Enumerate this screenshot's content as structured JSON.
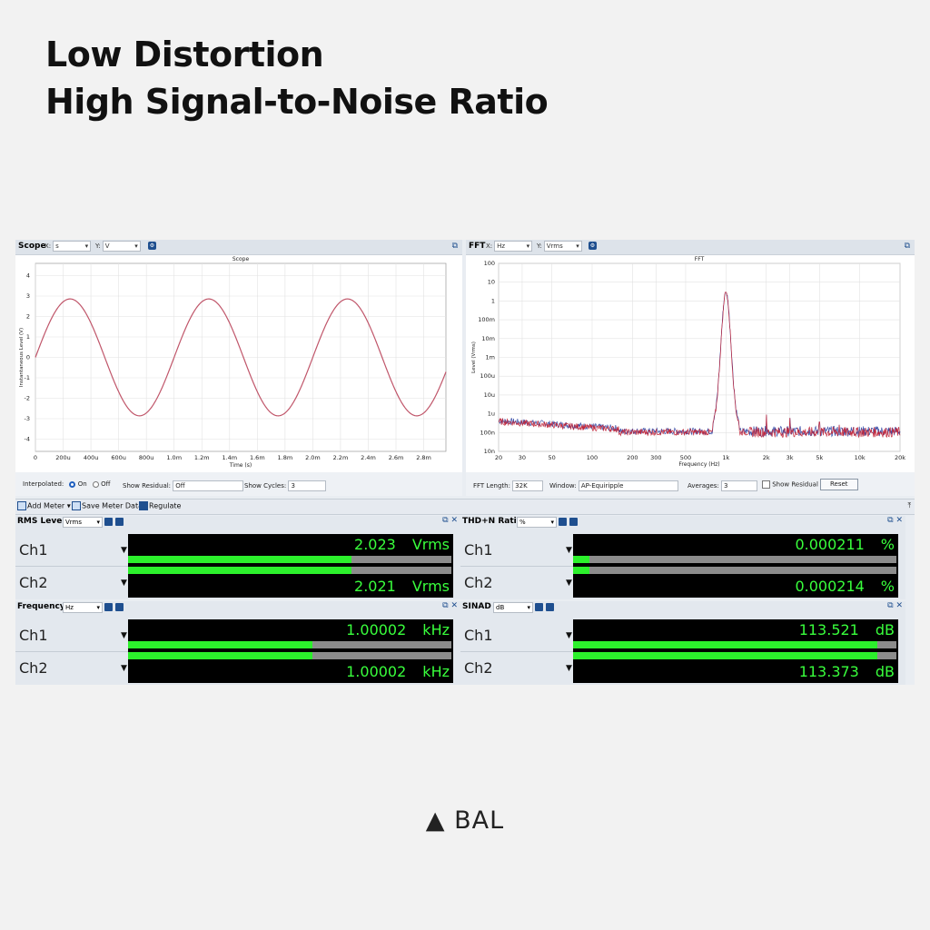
{
  "heading": {
    "line1": "Low Distortion",
    "line2": "High Signal-to-Noise Ratio"
  },
  "scope": {
    "title": "Scope",
    "x_label": "X:",
    "x_unit": "s",
    "y_label": "Y:",
    "y_unit": "V",
    "plot_title": "Scope",
    "ylabel": "Instantaneous Level (V)",
    "xlabel": "Time (s)",
    "yticks": [
      "4",
      "3",
      "2",
      "1",
      "0",
      "-1",
      "-2",
      "-3",
      "-4"
    ],
    "xticks": [
      "0",
      "200u",
      "400u",
      "600u",
      "800u",
      "1.0m",
      "1.2m",
      "1.4m",
      "1.6m",
      "1.8m",
      "2.0m",
      "2.2m",
      "2.4m",
      "2.6m",
      "2.8m"
    ],
    "controls": {
      "interpolated_label": "Interpolated:",
      "on_label": "On",
      "off_label": "Off",
      "show_residual_label": "Show Residual:",
      "show_residual_value": "Off",
      "show_cycles_label": "Show Cycles:",
      "show_cycles_value": "3"
    }
  },
  "fft": {
    "title": "FFT",
    "x_label": "X:",
    "x_unit": "Hz",
    "y_label": "Y:",
    "y_unit": "Vrms",
    "plot_title": "FFT",
    "ylabel": "Level (Vrms)",
    "xlabel": "Frequency (Hz)",
    "yticks": [
      "100",
      "10",
      "1",
      "100m",
      "10m",
      "1m",
      "100u",
      "10u",
      "1u",
      "100n",
      "10n"
    ],
    "xticks": [
      "20",
      "30",
      "50",
      "100",
      "200",
      "300",
      "500",
      "1k",
      "2k",
      "3k",
      "5k",
      "10k",
      "20k"
    ],
    "controls": {
      "fft_length_label": "FFT Length:",
      "fft_length_value": "32K",
      "window_label": "Window:",
      "window_value": "AP-Equiripple",
      "averages_label": "Averages:",
      "averages_value": "3",
      "show_residual_label": "Show Residual",
      "reset_label": "Reset"
    }
  },
  "toolbar": {
    "add_meter": "Add Meter",
    "save_meter_data": "Save Meter Data",
    "regulate": "Regulate"
  },
  "meters": {
    "rms": {
      "title": "RMS Level",
      "unit": "Vrms",
      "ch1_label": "Ch1",
      "ch2_label": "Ch2",
      "ch1_value": "2.023",
      "ch2_value": "2.021",
      "value_unit": "Vrms",
      "ch1_fill": 0.69,
      "ch2_fill": 0.69
    },
    "thdn": {
      "title": "THD+N Ratio",
      "unit": "%",
      "ch1_label": "Ch1",
      "ch2_label": "Ch2",
      "ch1_value": "0.000211",
      "ch2_value": "0.000214",
      "value_unit": "%",
      "ch1_fill": 0.05,
      "ch2_fill": 0.05
    },
    "freq": {
      "title": "Frequency",
      "unit": "Hz",
      "ch1_label": "Ch1",
      "ch2_label": "Ch2",
      "ch1_value": "1.00002",
      "ch2_value": "1.00002",
      "value_unit": "kHz",
      "ch1_fill": 0.57,
      "ch2_fill": 0.57
    },
    "sinad": {
      "title": "SINAD",
      "unit": "dB",
      "ch1_label": "Ch1",
      "ch2_label": "Ch2",
      "ch1_value": "113.521",
      "ch2_value": "113.373",
      "value_unit": "dB",
      "ch1_fill": 0.94,
      "ch2_fill": 0.94
    }
  },
  "footer": {
    "label": "BAL"
  },
  "colors": {
    "meter_green": "#39ff3c",
    "bar_green": "#2cf02c",
    "scope_trace": "#c0566a",
    "fft_ch1": "#c2283c",
    "fft_ch2": "#3b4fa8"
  }
}
